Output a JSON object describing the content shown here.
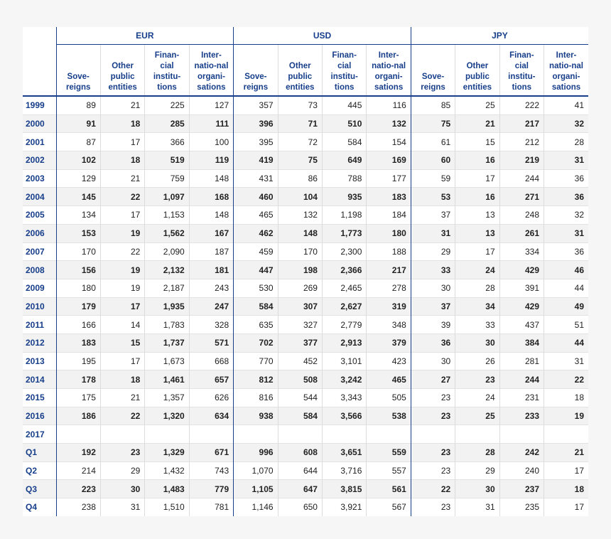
{
  "groups": [
    "EUR",
    "USD",
    "JPY"
  ],
  "subheaders": [
    [
      "Sove-",
      "reigns"
    ],
    [
      "Other",
      "public",
      "entities"
    ],
    [
      "Finan-",
      "cial",
      "institu-",
      "tions"
    ],
    [
      "Inter-",
      "natio-nal",
      "organi-",
      "sations"
    ]
  ],
  "rows": [
    {
      "label": "1999",
      "bold": false,
      "values": [
        "89",
        "21",
        "225",
        "127",
        "357",
        "73",
        "445",
        "116",
        "85",
        "25",
        "222",
        "41"
      ]
    },
    {
      "label": "2000",
      "bold": true,
      "values": [
        "91",
        "18",
        "285",
        "111",
        "396",
        "71",
        "510",
        "132",
        "75",
        "21",
        "217",
        "32"
      ]
    },
    {
      "label": "2001",
      "bold": false,
      "values": [
        "87",
        "17",
        "366",
        "100",
        "395",
        "72",
        "584",
        "154",
        "61",
        "15",
        "212",
        "28"
      ]
    },
    {
      "label": "2002",
      "bold": true,
      "values": [
        "102",
        "18",
        "519",
        "119",
        "419",
        "75",
        "649",
        "169",
        "60",
        "16",
        "219",
        "31"
      ]
    },
    {
      "label": "2003",
      "bold": false,
      "values": [
        "129",
        "21",
        "759",
        "148",
        "431",
        "86",
        "788",
        "177",
        "59",
        "17",
        "244",
        "36"
      ]
    },
    {
      "label": "2004",
      "bold": true,
      "values": [
        "145",
        "22",
        "1,097",
        "168",
        "460",
        "104",
        "935",
        "183",
        "53",
        "16",
        "271",
        "36"
      ]
    },
    {
      "label": "2005",
      "bold": false,
      "values": [
        "134",
        "17",
        "1,153",
        "148",
        "465",
        "132",
        "1,198",
        "184",
        "37",
        "13",
        "248",
        "32"
      ]
    },
    {
      "label": "2006",
      "bold": true,
      "values": [
        "153",
        "19",
        "1,562",
        "167",
        "462",
        "148",
        "1,773",
        "180",
        "31",
        "13",
        "261",
        "31"
      ]
    },
    {
      "label": "2007",
      "bold": false,
      "values": [
        "170",
        "22",
        "2,090",
        "187",
        "459",
        "170",
        "2,300",
        "188",
        "29",
        "17",
        "334",
        "36"
      ]
    },
    {
      "label": "2008",
      "bold": true,
      "values": [
        "156",
        "19",
        "2,132",
        "181",
        "447",
        "198",
        "2,366",
        "217",
        "33",
        "24",
        "429",
        "46"
      ]
    },
    {
      "label": "2009",
      "bold": false,
      "values": [
        "180",
        "19",
        "2,187",
        "243",
        "530",
        "269",
        "2,465",
        "278",
        "30",
        "28",
        "391",
        "44"
      ]
    },
    {
      "label": "2010",
      "bold": true,
      "values": [
        "179",
        "17",
        "1,935",
        "247",
        "584",
        "307",
        "2,627",
        "319",
        "37",
        "34",
        "429",
        "49"
      ]
    },
    {
      "label": "2011",
      "bold": false,
      "values": [
        "166",
        "14",
        "1,783",
        "328",
        "635",
        "327",
        "2,779",
        "348",
        "39",
        "33",
        "437",
        "51"
      ]
    },
    {
      "label": "2012",
      "bold": true,
      "values": [
        "183",
        "15",
        "1,737",
        "571",
        "702",
        "377",
        "2,913",
        "379",
        "36",
        "30",
        "384",
        "44"
      ]
    },
    {
      "label": "2013",
      "bold": false,
      "values": [
        "195",
        "17",
        "1,673",
        "668",
        "770",
        "452",
        "3,101",
        "423",
        "30",
        "26",
        "281",
        "31"
      ]
    },
    {
      "label": "2014",
      "bold": true,
      "values": [
        "178",
        "18",
        "1,461",
        "657",
        "812",
        "508",
        "3,242",
        "465",
        "27",
        "23",
        "244",
        "22"
      ]
    },
    {
      "label": "2015",
      "bold": false,
      "values": [
        "175",
        "21",
        "1,357",
        "626",
        "816",
        "544",
        "3,343",
        "505",
        "23",
        "24",
        "231",
        "18"
      ]
    },
    {
      "label": "2016",
      "bold": true,
      "values": [
        "186",
        "22",
        "1,320",
        "634",
        "938",
        "584",
        "3,566",
        "538",
        "23",
        "25",
        "233",
        "19"
      ]
    },
    {
      "label": "2017",
      "bold": false,
      "values": [
        "",
        "",
        "",
        "",
        "",
        "",
        "",
        "",
        "",
        "",
        "",
        ""
      ]
    },
    {
      "label": "Q1",
      "bold": true,
      "values": [
        "192",
        "23",
        "1,329",
        "671",
        "996",
        "608",
        "3,651",
        "559",
        "23",
        "28",
        "242",
        "21"
      ]
    },
    {
      "label": "Q2",
      "bold": false,
      "values": [
        "214",
        "29",
        "1,432",
        "743",
        "1,070",
        "644",
        "3,716",
        "557",
        "23",
        "29",
        "240",
        "17"
      ]
    },
    {
      "label": "Q3",
      "bold": true,
      "values": [
        "223",
        "30",
        "1,483",
        "779",
        "1,105",
        "647",
        "3,815",
        "561",
        "22",
        "30",
        "237",
        "18"
      ]
    },
    {
      "label": "Q4",
      "bold": false,
      "values": [
        "238",
        "31",
        "1,510",
        "781",
        "1,146",
        "650",
        "3,921",
        "567",
        "23",
        "31",
        "235",
        "17"
      ]
    }
  ]
}
